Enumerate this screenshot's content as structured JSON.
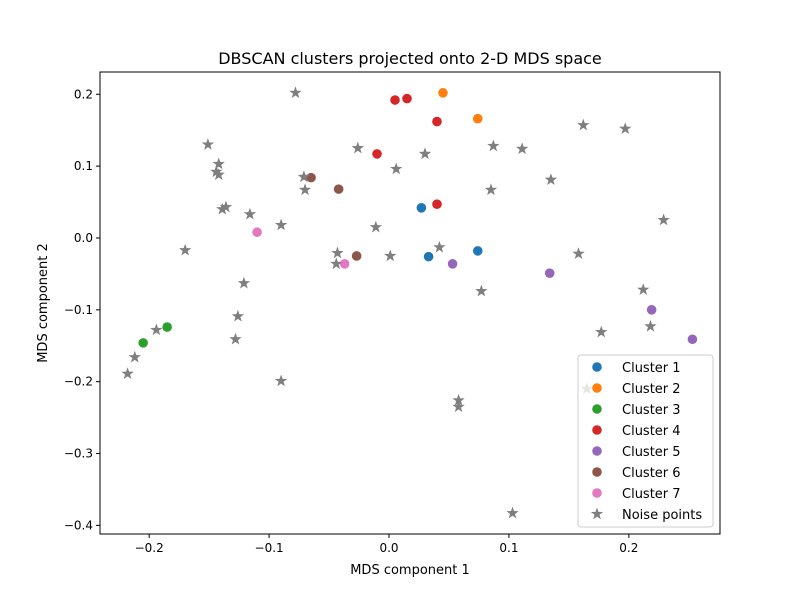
{
  "chart_data": {
    "type": "scatter",
    "title": "DBSCAN clusters projected onto 2-D MDS space",
    "xlabel": "MDS component 1",
    "ylabel": "MDS component 2",
    "xlim": [
      -0.241,
      0.276
    ],
    "ylim": [
      -0.412,
      0.231
    ],
    "xticks": [
      -0.2,
      -0.1,
      0.0,
      0.1,
      0.2
    ],
    "xtick_labels": [
      "−0.2",
      "−0.1",
      "0.0",
      "0.1",
      "0.2"
    ],
    "yticks": [
      0.2,
      0.1,
      0.0,
      -0.1,
      -0.2,
      -0.3,
      -0.4
    ],
    "ytick_labels": [
      "0.2",
      "0.1",
      "0.0",
      "−0.1",
      "−0.2",
      "−0.3",
      "−0.4"
    ],
    "grid": false,
    "legend_position": "lower-right",
    "series": [
      {
        "name": "Cluster 1",
        "marker": "circle",
        "color": "#1f77b4",
        "points": [
          [
            0.027,
            0.042
          ],
          [
            0.033,
            -0.026
          ],
          [
            0.074,
            -0.018
          ]
        ]
      },
      {
        "name": "Cluster 2",
        "marker": "circle",
        "color": "#ff7f0e",
        "points": [
          [
            0.045,
            0.202
          ],
          [
            0.074,
            0.166
          ]
        ]
      },
      {
        "name": "Cluster 3",
        "marker": "circle",
        "color": "#2ca02c",
        "points": [
          [
            -0.185,
            -0.124
          ],
          [
            -0.205,
            -0.146
          ]
        ]
      },
      {
        "name": "Cluster 4",
        "marker": "circle",
        "color": "#d62728",
        "points": [
          [
            0.005,
            0.192
          ],
          [
            0.015,
            0.194
          ],
          [
            0.04,
            0.162
          ],
          [
            -0.01,
            0.117
          ],
          [
            0.04,
            0.047
          ]
        ]
      },
      {
        "name": "Cluster 5",
        "marker": "circle",
        "color": "#9467bd",
        "points": [
          [
            0.053,
            -0.036
          ],
          [
            0.134,
            -0.049
          ],
          [
            0.219,
            -0.1
          ],
          [
            0.253,
            -0.141
          ]
        ]
      },
      {
        "name": "Cluster 6",
        "marker": "circle",
        "color": "#8c564b",
        "points": [
          [
            -0.065,
            0.084
          ],
          [
            -0.042,
            0.068
          ],
          [
            -0.027,
            -0.025
          ]
        ]
      },
      {
        "name": "Cluster 7",
        "marker": "circle",
        "color": "#e377c2",
        "points": [
          [
            -0.11,
            0.008
          ],
          [
            -0.037,
            -0.036
          ]
        ]
      },
      {
        "name": "Noise points",
        "marker": "star",
        "color": "#7f7f7f",
        "points": [
          [
            -0.078,
            0.202
          ],
          [
            -0.151,
            0.13
          ],
          [
            -0.142,
            0.103
          ],
          [
            -0.144,
            0.092
          ],
          [
            -0.142,
            0.088
          ],
          [
            -0.139,
            0.04
          ],
          [
            -0.136,
            0.043
          ],
          [
            -0.116,
            0.033
          ],
          [
            -0.09,
            0.018
          ],
          [
            -0.17,
            -0.017
          ],
          [
            -0.121,
            -0.063
          ],
          [
            -0.071,
            0.085
          ],
          [
            -0.07,
            0.067
          ],
          [
            -0.026,
            0.125
          ],
          [
            -0.011,
            0.015
          ],
          [
            -0.043,
            -0.021
          ],
          [
            -0.044,
            -0.036
          ],
          [
            0.001,
            -0.025
          ],
          [
            0.006,
            0.096
          ],
          [
            0.03,
            0.117
          ],
          [
            0.042,
            -0.013
          ],
          [
            0.087,
            0.128
          ],
          [
            0.085,
            0.067
          ],
          [
            0.111,
            0.124
          ],
          [
            0.135,
            0.081
          ],
          [
            0.162,
            0.157
          ],
          [
            0.197,
            0.152
          ],
          [
            0.229,
            0.025
          ],
          [
            0.158,
            -0.022
          ],
          [
            0.077,
            -0.074
          ],
          [
            0.212,
            -0.072
          ],
          [
            0.218,
            -0.123
          ],
          [
            0.177,
            -0.131
          ],
          [
            -0.126,
            -0.109
          ],
          [
            -0.128,
            -0.141
          ],
          [
            -0.194,
            -0.128
          ],
          [
            -0.212,
            -0.166
          ],
          [
            -0.218,
            -0.189
          ],
          [
            -0.09,
            -0.199
          ],
          [
            0.058,
            -0.226
          ],
          [
            0.058,
            -0.235
          ],
          [
            0.103,
            -0.383
          ],
          [
            0.165,
            -0.21
          ]
        ]
      }
    ]
  }
}
